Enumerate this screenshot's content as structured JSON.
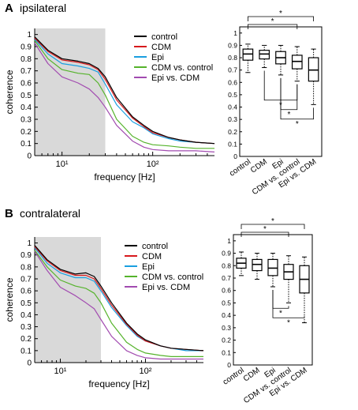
{
  "colors": {
    "control": "#000000",
    "CDM": "#d7191c",
    "Epi": "#1a9fe0",
    "CDM vs. control": "#55b32b",
    "Epi vs. CDM": "#a24bb0",
    "shade": "#d9d9d9"
  },
  "panels": [
    {
      "letter": "A",
      "title": "ipsilateral"
    },
    {
      "letter": "B",
      "title": "contralateral"
    }
  ],
  "chart_data": [
    {
      "type": "line",
      "panel": "A",
      "xlabel": "frequency [Hz]",
      "ylabel": "coherence",
      "xscale": "log",
      "xlim": [
        5,
        480
      ],
      "ylim": [
        0,
        1.05
      ],
      "xticks": [
        10,
        100
      ],
      "xtick_labels": [
        "10¹",
        "10²"
      ],
      "yticks": [
        0,
        0.1,
        0.2,
        0.3,
        0.4,
        0.5,
        0.6,
        0.7,
        0.8,
        0.9,
        1
      ],
      "ytick_labels": [
        "0",
        "0.1",
        "0.2",
        "0.3",
        "0.4",
        "0.5",
        "0.6",
        "0.7",
        "0.8",
        "0.9",
        "1"
      ],
      "shaded_region": [
        5,
        30
      ],
      "legend": "top-right",
      "x": [
        5,
        7,
        10,
        15,
        20,
        25,
        30,
        40,
        60,
        80,
        100,
        150,
        200,
        300,
        480
      ],
      "series": [
        {
          "name": "control",
          "values": [
            0.98,
            0.87,
            0.8,
            0.78,
            0.76,
            0.72,
            0.65,
            0.48,
            0.32,
            0.25,
            0.2,
            0.15,
            0.13,
            0.11,
            0.1
          ]
        },
        {
          "name": "CDM",
          "values": [
            0.97,
            0.86,
            0.79,
            0.77,
            0.75,
            0.71,
            0.63,
            0.46,
            0.31,
            0.24,
            0.19,
            0.15,
            0.13,
            0.11,
            0.1
          ]
        },
        {
          "name": "Epi",
          "values": [
            0.96,
            0.84,
            0.76,
            0.74,
            0.72,
            0.69,
            0.59,
            0.42,
            0.28,
            0.23,
            0.18,
            0.14,
            0.12,
            0.11,
            0.1
          ]
        },
        {
          "name": "CDM vs. control",
          "values": [
            0.95,
            0.8,
            0.71,
            0.68,
            0.67,
            0.6,
            0.5,
            0.3,
            0.16,
            0.11,
            0.09,
            0.08,
            0.07,
            0.06,
            0.06
          ]
        },
        {
          "name": "Epi vs. CDM",
          "values": [
            0.93,
            0.76,
            0.65,
            0.6,
            0.55,
            0.48,
            0.4,
            0.25,
            0.12,
            0.07,
            0.05,
            0.04,
            0.04,
            0.04,
            0.03
          ]
        }
      ]
    },
    {
      "type": "box",
      "panel": "A",
      "ylim": [
        0,
        1.05
      ],
      "yticks": [
        0,
        0.1,
        0.2,
        0.3,
        0.4,
        0.5,
        0.6,
        0.7,
        0.8,
        0.9,
        1
      ],
      "ytick_labels": [
        "0",
        "0.1",
        "0.2",
        "0.3",
        "0.4",
        "0.5",
        "0.6",
        "0.7",
        "0.8",
        "0.9",
        "1"
      ],
      "categories": [
        "control",
        "CDM",
        "Epi",
        "CDM vs. control",
        "Epi vs. CDM"
      ],
      "boxes": [
        {
          "whisker_low": 0.68,
          "q1": 0.78,
          "median": 0.83,
          "q3": 0.87,
          "whisker_high": 0.91
        },
        {
          "whisker_low": 0.72,
          "q1": 0.79,
          "median": 0.83,
          "q3": 0.86,
          "whisker_high": 0.9
        },
        {
          "whisker_low": 0.66,
          "q1": 0.75,
          "median": 0.8,
          "q3": 0.85,
          "whisker_high": 0.9
        },
        {
          "whisker_low": 0.61,
          "q1": 0.71,
          "median": 0.77,
          "q3": 0.82,
          "whisker_high": 0.89
        },
        {
          "whisker_low": 0.42,
          "q1": 0.61,
          "median": 0.7,
          "q3": 0.8,
          "whisker_high": 0.87
        }
      ],
      "significance": [
        {
          "from": 0,
          "to": 3,
          "side": "top",
          "label": "*"
        },
        {
          "from": 0,
          "to": 4,
          "side": "top",
          "label": "*"
        },
        {
          "from": 1,
          "to": 3,
          "side": "bottom",
          "label": "*"
        },
        {
          "from": 2,
          "to": 3,
          "side": "bottom",
          "label": "*"
        },
        {
          "from": 2,
          "to": 4,
          "side": "bottom",
          "label": "*"
        }
      ]
    },
    {
      "type": "line",
      "panel": "B",
      "xlabel": "frequency [Hz]",
      "ylabel": "coherence",
      "xscale": "log",
      "xlim": [
        5,
        480
      ],
      "ylim": [
        0,
        1.05
      ],
      "xticks": [
        10,
        100
      ],
      "xtick_labels": [
        "10¹",
        "10²"
      ],
      "yticks": [
        0,
        0.1,
        0.2,
        0.3,
        0.4,
        0.5,
        0.6,
        0.7,
        0.8,
        0.9,
        1
      ],
      "ytick_labels": [
        "0",
        "0.1",
        "0.2",
        "0.3",
        "0.4",
        "0.5",
        "0.6",
        "0.7",
        "0.8",
        "0.9",
        "1"
      ],
      "shaded_region": [
        5,
        30
      ],
      "legend": "top-right",
      "x": [
        5,
        7,
        10,
        15,
        20,
        25,
        30,
        40,
        60,
        80,
        100,
        150,
        200,
        300,
        480
      ],
      "series": [
        {
          "name": "control",
          "values": [
            0.98,
            0.86,
            0.78,
            0.74,
            0.75,
            0.72,
            0.64,
            0.5,
            0.33,
            0.24,
            0.19,
            0.14,
            0.12,
            0.11,
            0.1
          ]
        },
        {
          "name": "CDM",
          "values": [
            0.97,
            0.85,
            0.77,
            0.73,
            0.73,
            0.7,
            0.62,
            0.48,
            0.32,
            0.23,
            0.18,
            0.14,
            0.12,
            0.11,
            0.1
          ]
        },
        {
          "name": "Epi",
          "values": [
            0.96,
            0.83,
            0.75,
            0.71,
            0.71,
            0.68,
            0.6,
            0.46,
            0.31,
            0.22,
            0.18,
            0.14,
            0.12,
            0.1,
            0.1
          ]
        },
        {
          "name": "CDM vs. control",
          "values": [
            0.94,
            0.8,
            0.69,
            0.64,
            0.62,
            0.58,
            0.5,
            0.33,
            0.17,
            0.11,
            0.08,
            0.06,
            0.05,
            0.05,
            0.05
          ]
        },
        {
          "name": "Epi vs. CDM",
          "values": [
            0.93,
            0.77,
            0.63,
            0.56,
            0.5,
            0.45,
            0.36,
            0.22,
            0.1,
            0.06,
            0.04,
            0.03,
            0.03,
            0.03,
            0.03
          ]
        }
      ]
    },
    {
      "type": "box",
      "panel": "B",
      "ylim": [
        0,
        1.05
      ],
      "yticks": [
        0,
        0.1,
        0.2,
        0.3,
        0.4,
        0.5,
        0.6,
        0.7,
        0.8,
        0.9,
        1
      ],
      "ytick_labels": [
        "0",
        "0.1",
        "0.2",
        "0.3",
        "0.4",
        "0.5",
        "0.6",
        "0.7",
        "0.8",
        "0.9",
        "1"
      ],
      "categories": [
        "control",
        "CDM",
        "Epi",
        "CDM vs. control",
        "Epi vs. CDM"
      ],
      "boxes": [
        {
          "whisker_low": 0.72,
          "q1": 0.78,
          "median": 0.82,
          "q3": 0.86,
          "whisker_high": 0.91
        },
        {
          "whisker_low": 0.69,
          "q1": 0.76,
          "median": 0.81,
          "q3": 0.85,
          "whisker_high": 0.9
        },
        {
          "whisker_low": 0.63,
          "q1": 0.72,
          "median": 0.78,
          "q3": 0.85,
          "whisker_high": 0.9
        },
        {
          "whisker_low": 0.5,
          "q1": 0.69,
          "median": 0.75,
          "q3": 0.81,
          "whisker_high": 0.88
        },
        {
          "whisker_low": 0.34,
          "q1": 0.58,
          "median": 0.69,
          "q3": 0.8,
          "whisker_high": 0.87
        }
      ],
      "significance": [
        {
          "from": 0,
          "to": 3,
          "side": "top",
          "label": "*"
        },
        {
          "from": 0,
          "to": 4,
          "side": "top",
          "label": "*"
        },
        {
          "from": 2,
          "to": 3,
          "side": "bottom",
          "label": "*"
        },
        {
          "from": 2,
          "to": 4,
          "side": "bottom",
          "label": "*"
        }
      ]
    }
  ]
}
